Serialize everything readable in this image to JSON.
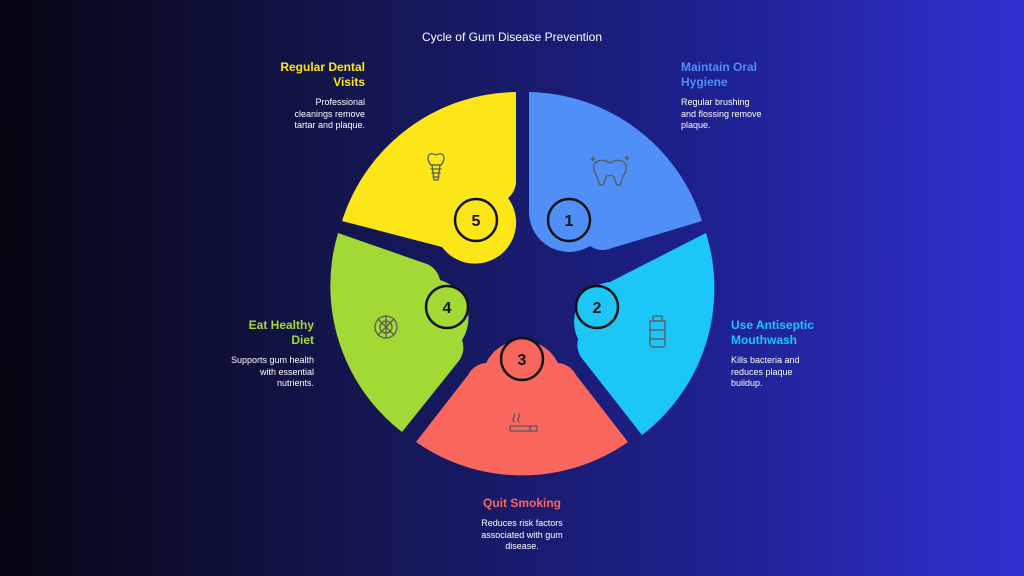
{
  "title": "Cycle of Gum Disease Prevention",
  "colors": {
    "step1": "#4f8ff7",
    "step2": "#1cc6f7",
    "step3": "#f8665e",
    "step4": "#a3d935",
    "step5": "#fde618"
  },
  "steps": [
    {
      "number": "1",
      "title_line1": "Maintain Oral",
      "title_line2": "Hygiene",
      "desc_line1": "Regular brushing",
      "desc_line2": "and flossing remove",
      "desc_line3": "plaque.",
      "icon": "tooth-icon"
    },
    {
      "number": "2",
      "title_line1": "Use Antiseptic",
      "title_line2": "Mouthwash",
      "desc_line1": "Kills bacteria and",
      "desc_line2": "reduces plaque",
      "desc_line3": "buildup.",
      "icon": "mouthwash-bottle-icon"
    },
    {
      "number": "3",
      "title_line1": "Quit Smoking",
      "desc_line1": "Reduces risk factors",
      "desc_line2": "associated with gum",
      "desc_line3": "disease.",
      "icon": "cigarette-icon"
    },
    {
      "number": "4",
      "title_line1": "Eat Healthy",
      "title_line2": "Diet",
      "desc_line1": "Supports gum health",
      "desc_line2": "with essential",
      "desc_line3": "nutrients.",
      "icon": "healthy-food-icon"
    },
    {
      "number": "5",
      "title_line1": "Regular Dental",
      "title_line2": "Visits",
      "desc_line1": "Professional",
      "desc_line2": "cleanings remove",
      "desc_line3": "tartar and plaque.",
      "icon": "dental-implant-icon"
    }
  ]
}
